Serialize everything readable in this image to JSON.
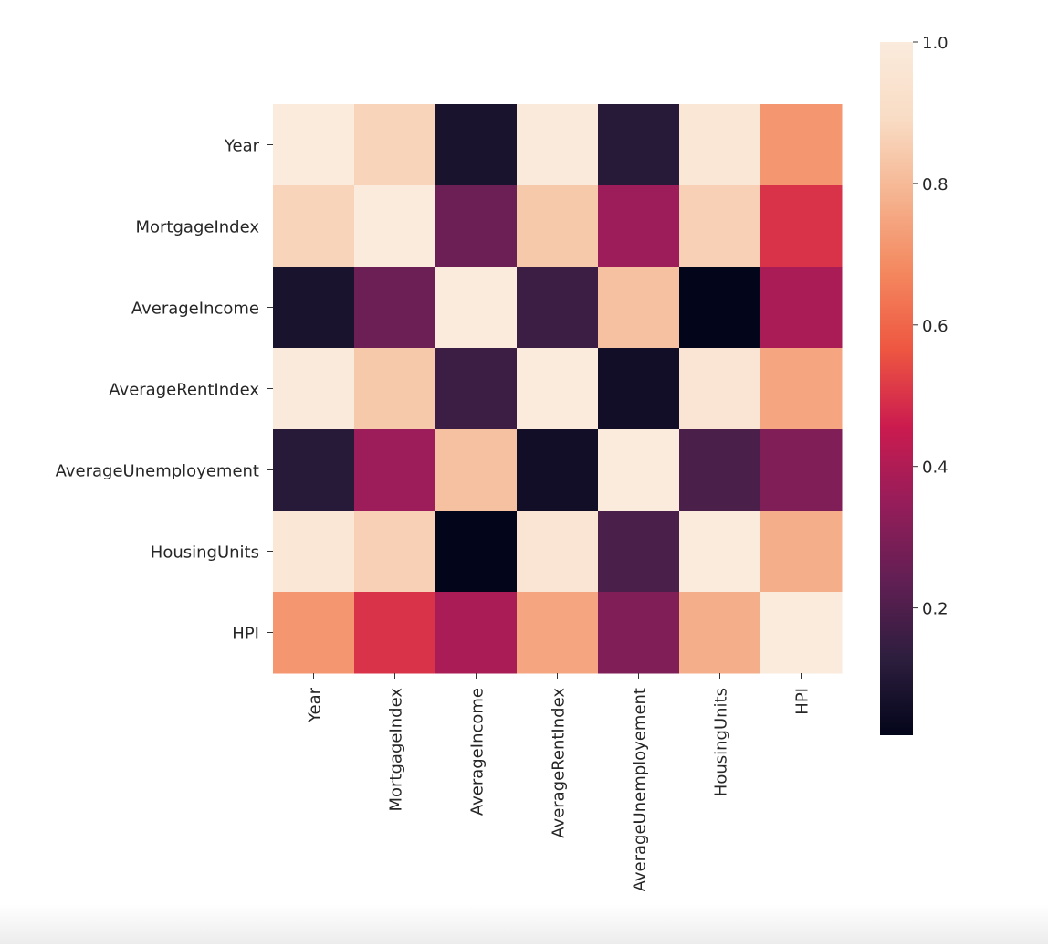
{
  "chart_data": {
    "type": "heatmap",
    "title": "",
    "xlabel": "",
    "ylabel": "",
    "rows": [
      "Year",
      "MortgageIndex",
      "AverageIncome",
      "AverageRentIndex",
      "AverageUnemployement",
      "HousingUnits",
      "HPI"
    ],
    "columns": [
      "Year",
      "MortgageIndex",
      "AverageIncome",
      "AverageRentIndex",
      "AverageUnemployement",
      "HousingUnits",
      "HPI"
    ],
    "values": [
      [
        1.0,
        0.87,
        0.08,
        0.99,
        0.11,
        0.97,
        0.71
      ],
      [
        0.87,
        1.0,
        0.26,
        0.84,
        0.36,
        0.86,
        0.5
      ],
      [
        0.08,
        0.26,
        1.0,
        0.16,
        0.82,
        0.02,
        0.39
      ],
      [
        0.99,
        0.84,
        0.16,
        1.0,
        0.06,
        0.96,
        0.75
      ],
      [
        0.11,
        0.36,
        0.82,
        0.06,
        1.0,
        0.19,
        0.3
      ],
      [
        0.97,
        0.86,
        0.02,
        0.96,
        0.19,
        1.0,
        0.77
      ],
      [
        0.71,
        0.5,
        0.39,
        0.75,
        0.3,
        0.77,
        1.0
      ]
    ],
    "colorbar": {
      "vmin": 0.02,
      "vmax": 1.0,
      "ticks": [
        0.2,
        0.4,
        0.6,
        0.8,
        1.0
      ],
      "tick_labels": [
        "0.2",
        "0.4",
        "0.6",
        "0.8",
        "1.0"
      ],
      "colormap": "rocket",
      "colors": [
        "#03051a",
        "#2d1e3e",
        "#611f53",
        "#951d5a",
        "#cb1b4f",
        "#ee5641",
        "#f4875e",
        "#f5b38f",
        "#f9dcc4",
        "#faebdd"
      ]
    },
    "grid": false,
    "legend": "colorbar-right"
  }
}
